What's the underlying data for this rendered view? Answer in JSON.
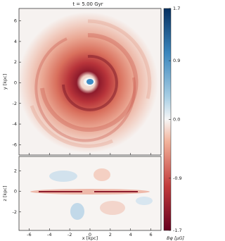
{
  "chart_data": {
    "type": "heatmap",
    "title": "t = 5.00 Gyr",
    "xlabel": "x [kpc]",
    "xlim": [
      -7,
      7
    ],
    "xticks": [
      -6,
      -4,
      -2,
      0,
      2,
      4,
      6
    ],
    "panels": [
      {
        "ylabel": "y [kpc]",
        "ylim": [
          -7,
          7.2
        ],
        "yticks": [
          -6,
          -4,
          -2,
          0,
          2,
          4,
          6
        ]
      },
      {
        "ylabel": "z [kpc]",
        "ylim": [
          -3.8,
          3.4
        ],
        "yticks": [
          -2,
          0,
          2
        ]
      }
    ],
    "colorbar": {
      "label": "Bφ [μG]",
      "clim": [
        -1.7,
        1.7
      ],
      "ticks": [
        -1.7,
        -0.9,
        {
          "value": 0,
          "label": "0.0"
        },
        0.9,
        1.7
      ]
    }
  }
}
